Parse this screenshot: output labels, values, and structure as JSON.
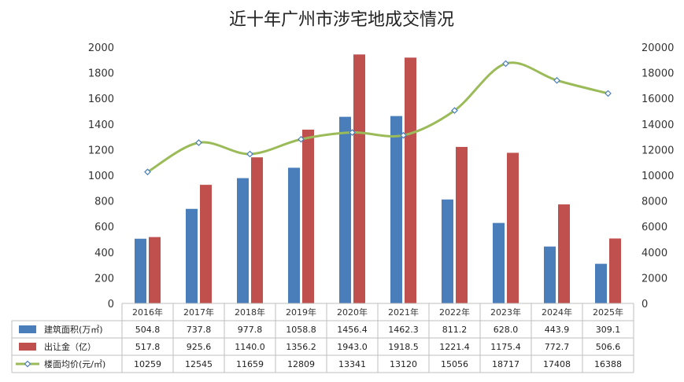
{
  "chart_data": {
    "type": "bar",
    "title": "近十年广州市涉宅地成交情况",
    "categories": [
      "2016年",
      "2017年",
      "2018年",
      "2019年",
      "2020年",
      "2021年",
      "2022年",
      "2023年",
      "2024年",
      "2025年"
    ],
    "y_left": {
      "min": 0,
      "max": 2000,
      "ticks": [
        "0",
        "200",
        "400",
        "600",
        "800",
        "1000",
        "1200",
        "1400",
        "1600",
        "1800",
        "2000"
      ]
    },
    "y_right": {
      "min": 0,
      "max": 20000,
      "ticks": [
        "0",
        "2000",
        "4000",
        "6000",
        "8000",
        "10000",
        "12000",
        "14000",
        "16000",
        "18000",
        "20000"
      ]
    },
    "series": [
      {
        "name": "建筑面积(万㎡)",
        "kind": "bar",
        "axis": "left",
        "color": "#4a7ebb",
        "values": [
          504.8,
          737.8,
          977.8,
          1058.8,
          1456.4,
          1462.3,
          811.2,
          628.0,
          443.9,
          309.1
        ],
        "labels": [
          "504.8",
          "737.8",
          "977.8",
          "1058.8",
          "1456.4",
          "1462.3",
          "811.2",
          "628.0",
          "443.9",
          "309.1"
        ]
      },
      {
        "name": "出让金（亿）",
        "kind": "bar",
        "axis": "left",
        "color": "#c0504d",
        "values": [
          517.8,
          925.6,
          1140.0,
          1356.2,
          1943.0,
          1918.5,
          1221.4,
          1175.4,
          772.7,
          506.6
        ],
        "labels": [
          "517.8",
          "925.6",
          "1140.0",
          "1356.2",
          "1943.0",
          "1918.5",
          "1221.4",
          "1175.4",
          "772.7",
          "506.6"
        ]
      },
      {
        "name": "楼面均价(元/㎡)",
        "kind": "line",
        "axis": "right",
        "color": "#9bbb59",
        "values": [
          10259,
          12545,
          11659,
          12809,
          13341,
          13120,
          15056,
          18717,
          17408,
          16388
        ],
        "labels": [
          "10259",
          "12545",
          "11659",
          "12809",
          "13341",
          "13120",
          "15056",
          "18717",
          "17408",
          "16388"
        ]
      }
    ],
    "data_table": true,
    "grid": false
  }
}
